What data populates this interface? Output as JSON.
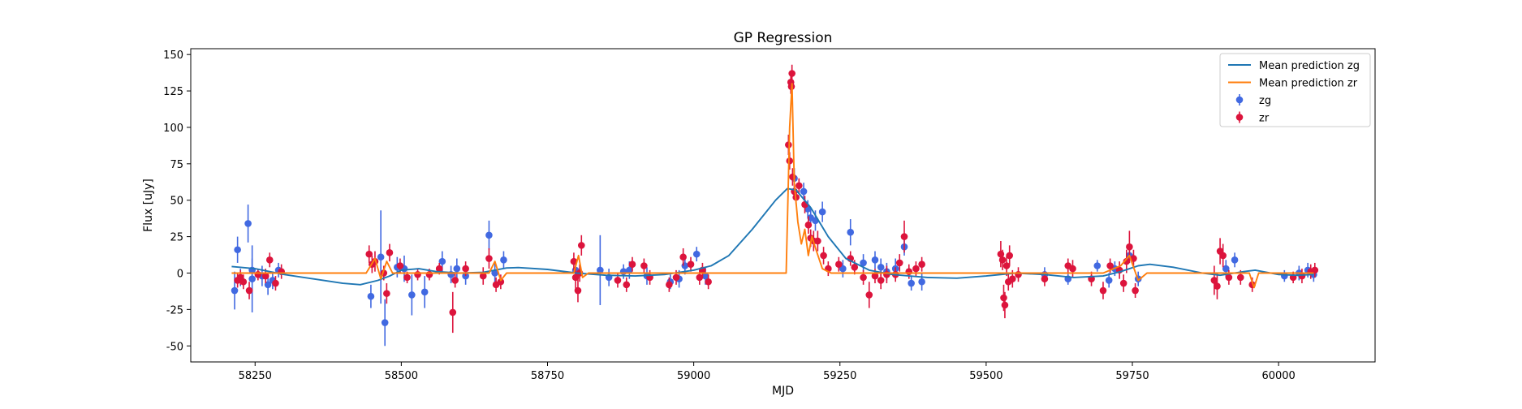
{
  "chart_data": {
    "type": "scatter",
    "title": "GP Regression",
    "xlabel": "MJD",
    "ylabel": "Flux [uJy]",
    "xlim": [
      58140,
      60165
    ],
    "ylim": [
      -61,
      154
    ],
    "xticks": [
      58250,
      58500,
      58750,
      59000,
      59250,
      59500,
      59750,
      60000
    ],
    "yticks": [
      -50,
      -25,
      0,
      25,
      50,
      75,
      100,
      125,
      150
    ],
    "grid": false,
    "legend_position": "top-right",
    "lines": [
      {
        "name": "Mean prediction zg",
        "color": "#1f77b4",
        "points": [
          [
            58210,
            4.5
          ],
          [
            58250,
            3
          ],
          [
            58300,
            -1
          ],
          [
            58350,
            -4
          ],
          [
            58400,
            -7
          ],
          [
            58430,
            -8
          ],
          [
            58460,
            -5
          ],
          [
            58480,
            -2
          ],
          [
            58500,
            2
          ],
          [
            58530,
            3
          ],
          [
            58560,
            1
          ],
          [
            58600,
            0
          ],
          [
            58640,
            0.5
          ],
          [
            58680,
            3.5
          ],
          [
            58700,
            3.8
          ],
          [
            58750,
            2.5
          ],
          [
            58800,
            0
          ],
          [
            58850,
            -1.5
          ],
          [
            58900,
            -2
          ],
          [
            58950,
            -1
          ],
          [
            59000,
            2
          ],
          [
            59030,
            5
          ],
          [
            59060,
            12
          ],
          [
            59100,
            30
          ],
          [
            59140,
            50
          ],
          [
            59160,
            58
          ],
          [
            59175,
            57
          ],
          [
            59200,
            45
          ],
          [
            59230,
            25
          ],
          [
            59260,
            10
          ],
          [
            59300,
            2
          ],
          [
            59340,
            -1
          ],
          [
            59400,
            -3
          ],
          [
            59450,
            -3.5
          ],
          [
            59500,
            -2
          ],
          [
            59550,
            0
          ],
          [
            59600,
            -1
          ],
          [
            59650,
            -3
          ],
          [
            59700,
            -2
          ],
          [
            59730,
            1
          ],
          [
            59760,
            5
          ],
          [
            59780,
            6
          ],
          [
            59820,
            4
          ],
          [
            59870,
            0
          ],
          [
            59900,
            -1.5
          ],
          [
            59940,
            1
          ],
          [
            59960,
            2
          ],
          [
            60000,
            -1
          ],
          [
            60030,
            -1.5
          ],
          [
            60060,
            -1
          ]
        ]
      },
      {
        "name": "Mean prediction zr",
        "color": "#ff7f0e",
        "points": [
          [
            58210,
            0
          ],
          [
            58440,
            0
          ],
          [
            58455,
            10
          ],
          [
            58465,
            -4
          ],
          [
            58475,
            8
          ],
          [
            58485,
            0
          ],
          [
            58650,
            0
          ],
          [
            58660,
            8
          ],
          [
            58670,
            -5
          ],
          [
            58680,
            0
          ],
          [
            58795,
            0
          ],
          [
            58803,
            12
          ],
          [
            58810,
            -3
          ],
          [
            58820,
            0
          ],
          [
            59158,
            0
          ],
          [
            59164,
            100
          ],
          [
            59168,
            130
          ],
          [
            59172,
            62
          ],
          [
            59178,
            35
          ],
          [
            59184,
            20
          ],
          [
            59190,
            30
          ],
          [
            59196,
            12
          ],
          [
            59202,
            25
          ],
          [
            59210,
            15
          ],
          [
            59220,
            3
          ],
          [
            59235,
            0
          ],
          [
            59700,
            0
          ],
          [
            59730,
            5
          ],
          [
            59745,
            12
          ],
          [
            59760,
            -5
          ],
          [
            59775,
            0
          ],
          [
            59950,
            0
          ],
          [
            59958,
            -10
          ],
          [
            59966,
            0
          ],
          [
            60060,
            0
          ]
        ]
      }
    ],
    "series": [
      {
        "name": "zg",
        "color": "#4169e1",
        "points": [
          [
            58215,
            -12,
            13
          ],
          [
            58220,
            16,
            9
          ],
          [
            58238,
            34,
            13
          ],
          [
            58245,
            2,
            8
          ],
          [
            58225,
            -3,
            6
          ],
          [
            58245,
            -4,
            23
          ],
          [
            58262,
            -2,
            7
          ],
          [
            58272,
            -8,
            7
          ],
          [
            58280,
            -5,
            6
          ],
          [
            58290,
            2,
            5
          ],
          [
            58448,
            -16,
            8
          ],
          [
            58465,
            11,
            32
          ],
          [
            58472,
            -34,
            16
          ],
          [
            58493,
            4,
            7
          ],
          [
            58505,
            3,
            9
          ],
          [
            58518,
            -15,
            14
          ],
          [
            58540,
            -13,
            11
          ],
          [
            58570,
            8,
            7
          ],
          [
            58585,
            -1,
            6
          ],
          [
            58595,
            3,
            7
          ],
          [
            58610,
            -2,
            6
          ],
          [
            58650,
            26,
            10
          ],
          [
            58660,
            0,
            8
          ],
          [
            58675,
            9,
            6
          ],
          [
            58798,
            2,
            7
          ],
          [
            58840,
            2,
            24
          ],
          [
            58855,
            -3,
            6
          ],
          [
            58880,
            1,
            5
          ],
          [
            58890,
            2,
            6
          ],
          [
            58920,
            -2,
            6
          ],
          [
            58960,
            -6,
            5
          ],
          [
            58975,
            -4,
            6
          ],
          [
            58985,
            5,
            6
          ],
          [
            59005,
            13,
            5
          ],
          [
            59020,
            -2,
            6
          ],
          [
            59172,
            65,
            7
          ],
          [
            59188,
            56,
            6
          ],
          [
            59195,
            44,
            6
          ],
          [
            59200,
            38,
            6
          ],
          [
            59208,
            36,
            7
          ],
          [
            59220,
            42,
            7
          ],
          [
            59255,
            3,
            6
          ],
          [
            59268,
            28,
            9
          ],
          [
            59290,
            7,
            6
          ],
          [
            59310,
            9,
            6
          ],
          [
            59320,
            4,
            6
          ],
          [
            59330,
            1,
            6
          ],
          [
            59345,
            3,
            7
          ],
          [
            59360,
            18,
            6
          ],
          [
            59372,
            -7,
            5
          ],
          [
            59390,
            -6,
            6
          ],
          [
            59600,
            -1,
            5
          ],
          [
            59640,
            -4,
            4
          ],
          [
            59690,
            5,
            4
          ],
          [
            59720,
            3,
            5
          ],
          [
            59710,
            -5,
            5
          ],
          [
            59745,
            12,
            5
          ],
          [
            59760,
            -4,
            5
          ],
          [
            59910,
            3,
            6
          ],
          [
            59925,
            9,
            5
          ],
          [
            60010,
            -2,
            4
          ],
          [
            60035,
            0,
            5
          ],
          [
            60050,
            2,
            5
          ],
          [
            60060,
            -1,
            5
          ]
        ]
      },
      {
        "name": "zr",
        "color": "#dc143c",
        "points": [
          [
            58220,
            -5,
            5
          ],
          [
            58225,
            -3,
            5
          ],
          [
            58230,
            -6,
            5
          ],
          [
            58240,
            -12,
            6
          ],
          [
            58255,
            -1,
            4
          ],
          [
            58268,
            -2,
            5
          ],
          [
            58275,
            9,
            5
          ],
          [
            58285,
            -7,
            5
          ],
          [
            58295,
            1,
            5
          ],
          [
            58445,
            13,
            6
          ],
          [
            58450,
            6,
            6
          ],
          [
            58455,
            8,
            7
          ],
          [
            58470,
            0,
            5
          ],
          [
            58475,
            -14,
            7
          ],
          [
            58480,
            14,
            6
          ],
          [
            58498,
            5,
            5
          ],
          [
            58510,
            -3,
            4
          ],
          [
            58528,
            -1,
            4
          ],
          [
            58548,
            -1,
            4
          ],
          [
            58565,
            3,
            4
          ],
          [
            58588,
            -27,
            14
          ],
          [
            58592,
            -5,
            5
          ],
          [
            58610,
            3,
            5
          ],
          [
            58640,
            -2,
            6
          ],
          [
            58650,
            10,
            7
          ],
          [
            58662,
            -8,
            5
          ],
          [
            58670,
            -6,
            5
          ],
          [
            58795,
            8,
            6
          ],
          [
            58798,
            -3,
            8
          ],
          [
            58802,
            -12,
            8
          ],
          [
            58805,
            0,
            6
          ],
          [
            58808,
            19,
            7
          ],
          [
            58870,
            -5,
            5
          ],
          [
            58885,
            -8,
            5
          ],
          [
            58895,
            6,
            5
          ],
          [
            58915,
            5,
            5
          ],
          [
            58925,
            -3,
            5
          ],
          [
            58958,
            -8,
            5
          ],
          [
            58970,
            -3,
            5
          ],
          [
            58982,
            11,
            6
          ],
          [
            58995,
            6,
            5
          ],
          [
            59010,
            -3,
            5
          ],
          [
            59015,
            2,
            5
          ],
          [
            59025,
            -6,
            5
          ],
          [
            59162,
            88,
            7
          ],
          [
            59164,
            77,
            6
          ],
          [
            59166,
            131,
            8
          ],
          [
            59167,
            128,
            7
          ],
          [
            59168,
            137,
            6
          ],
          [
            59169,
            66,
            6
          ],
          [
            59172,
            56,
            5
          ],
          [
            59175,
            52,
            5
          ],
          [
            59180,
            60,
            5
          ],
          [
            59190,
            47,
            6
          ],
          [
            59196,
            33,
            6
          ],
          [
            59200,
            24,
            6
          ],
          [
            59205,
            22,
            7
          ],
          [
            59212,
            22,
            7
          ],
          [
            59222,
            12,
            6
          ],
          [
            59230,
            3,
            5
          ],
          [
            59248,
            6,
            5
          ],
          [
            59268,
            10,
            5
          ],
          [
            59275,
            4,
            5
          ],
          [
            59290,
            -3,
            5
          ],
          [
            59300,
            -15,
            9
          ],
          [
            59310,
            -2,
            5
          ],
          [
            59320,
            -5,
            6
          ],
          [
            59330,
            -1,
            6
          ],
          [
            59345,
            -1,
            5
          ],
          [
            59352,
            7,
            6
          ],
          [
            59360,
            25,
            11
          ],
          [
            59368,
            1,
            5
          ],
          [
            59380,
            3,
            5
          ],
          [
            59390,
            6,
            5
          ],
          [
            59525,
            13,
            9
          ],
          [
            59528,
            9,
            7
          ],
          [
            59530,
            -17,
            9
          ],
          [
            59532,
            -22,
            9
          ],
          [
            59535,
            5,
            7
          ],
          [
            59538,
            -6,
            6
          ],
          [
            59540,
            12,
            7
          ],
          [
            59545,
            -4,
            6
          ],
          [
            59555,
            -1,
            5
          ],
          [
            59600,
            -4,
            5
          ],
          [
            59640,
            5,
            5
          ],
          [
            59648,
            3,
            6
          ],
          [
            59680,
            -4,
            5
          ],
          [
            59700,
            -12,
            6
          ],
          [
            59712,
            5,
            5
          ],
          [
            59728,
            2,
            6
          ],
          [
            59735,
            -7,
            6
          ],
          [
            59740,
            8,
            8
          ],
          [
            59745,
            18,
            11
          ],
          [
            59752,
            10,
            6
          ],
          [
            59755,
            -12,
            5
          ],
          [
            59890,
            -5,
            10
          ],
          [
            59895,
            -9,
            9
          ],
          [
            59900,
            15,
            9
          ],
          [
            59905,
            12,
            8
          ],
          [
            59915,
            -3,
            5
          ],
          [
            59935,
            -3,
            5
          ],
          [
            59955,
            -8,
            5
          ],
          [
            60025,
            -3,
            4
          ],
          [
            60040,
            -2,
            5
          ],
          [
            60055,
            1,
            5
          ],
          [
            60062,
            2,
            5
          ]
        ]
      }
    ]
  }
}
